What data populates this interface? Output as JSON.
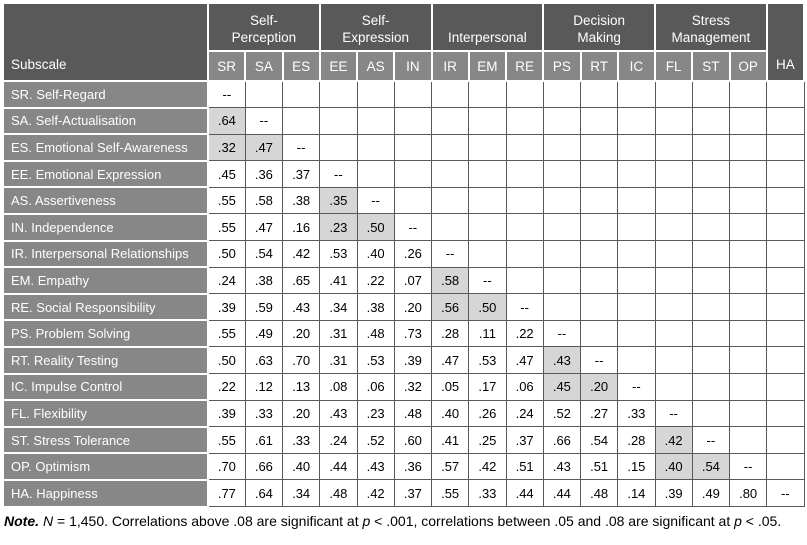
{
  "colors": {
    "header_dark": "#595959",
    "header_medium": "#878787",
    "shaded_cell": "#d6d6d6",
    "grid_line": "#595959",
    "header_text": "#ffffff",
    "cell_text": "#000000"
  },
  "table": {
    "corner_label": "Subscale",
    "groups": [
      {
        "name": "self-perception",
        "lines": [
          "Self-",
          "Perception"
        ],
        "span": 3
      },
      {
        "name": "self-expression",
        "lines": [
          "Self-",
          "Expression"
        ],
        "span": 3
      },
      {
        "name": "interpersonal",
        "lines": [
          "Interpersonal"
        ],
        "span": 3
      },
      {
        "name": "decision-making",
        "lines": [
          "Decision",
          "Making"
        ],
        "span": 3
      },
      {
        "name": "stress-management",
        "lines": [
          "Stress",
          "Management"
        ],
        "span": 3
      }
    ],
    "columns": [
      "SR",
      "SA",
      "ES",
      "EE",
      "AS",
      "IN",
      "IR",
      "EM",
      "RE",
      "PS",
      "RT",
      "IC",
      "FL",
      "ST",
      "OP",
      "HA"
    ],
    "diagonal_marker": "--",
    "rows": [
      {
        "code": "SR",
        "label": "SR. Self-Regard",
        "values": [
          "--"
        ],
        "shaded": []
      },
      {
        "code": "SA",
        "label": "SA. Self-Actualisation",
        "values": [
          ".64",
          "--"
        ],
        "shaded": [
          0
        ]
      },
      {
        "code": "ES",
        "label": "ES. Emotional Self-Awareness",
        "values": [
          ".32",
          ".47",
          "--"
        ],
        "shaded": [
          0,
          1
        ]
      },
      {
        "code": "EE",
        "label": "EE. Emotional Expression",
        "values": [
          ".45",
          ".36",
          ".37",
          "--"
        ],
        "shaded": []
      },
      {
        "code": "AS",
        "label": "AS. Assertiveness",
        "values": [
          ".55",
          ".58",
          ".38",
          ".35",
          "--"
        ],
        "shaded": [
          3
        ]
      },
      {
        "code": "IN",
        "label": "IN. Independence",
        "values": [
          ".55",
          ".47",
          ".16",
          ".23",
          ".50",
          "--"
        ],
        "shaded": [
          3,
          4
        ]
      },
      {
        "code": "IR",
        "label": "IR. Interpersonal Relationships",
        "values": [
          ".50",
          ".54",
          ".42",
          ".53",
          ".40",
          ".26",
          "--"
        ],
        "shaded": []
      },
      {
        "code": "EM",
        "label": "EM. Empathy",
        "values": [
          ".24",
          ".38",
          ".65",
          ".41",
          ".22",
          ".07",
          ".58",
          "--"
        ],
        "shaded": [
          6
        ]
      },
      {
        "code": "RE",
        "label": "RE. Social Responsibility",
        "values": [
          ".39",
          ".59",
          ".43",
          ".34",
          ".38",
          ".20",
          ".56",
          ".50",
          "--"
        ],
        "shaded": [
          6,
          7
        ]
      },
      {
        "code": "PS",
        "label": "PS. Problem Solving",
        "values": [
          ".55",
          ".49",
          ".20",
          ".31",
          ".48",
          ".73",
          ".28",
          ".11",
          ".22",
          "--"
        ],
        "shaded": []
      },
      {
        "code": "RT",
        "label": "RT. Reality Testing",
        "values": [
          ".50",
          ".63",
          ".70",
          ".31",
          ".53",
          ".39",
          ".47",
          ".53",
          ".47",
          ".43",
          "--"
        ],
        "shaded": [
          9
        ]
      },
      {
        "code": "IC",
        "label": "IC. Impulse Control",
        "values": [
          ".22",
          ".12",
          ".13",
          ".08",
          ".06",
          ".32",
          ".05",
          ".17",
          ".06",
          ".45",
          ".20",
          "--"
        ],
        "shaded": [
          9,
          10
        ]
      },
      {
        "code": "FL",
        "label": "FL. Flexibility",
        "values": [
          ".39",
          ".33",
          ".20",
          ".43",
          ".23",
          ".48",
          ".40",
          ".26",
          ".24",
          ".52",
          ".27",
          ".33",
          "--"
        ],
        "shaded": []
      },
      {
        "code": "ST",
        "label": "ST. Stress Tolerance",
        "values": [
          ".55",
          ".61",
          ".33",
          ".24",
          ".52",
          ".60",
          ".41",
          ".25",
          ".37",
          ".66",
          ".54",
          ".28",
          ".42",
          "--"
        ],
        "shaded": [
          12
        ]
      },
      {
        "code": "OP",
        "label": "OP. Optimism",
        "values": [
          ".70",
          ".66",
          ".40",
          ".44",
          ".43",
          ".36",
          ".57",
          ".42",
          ".51",
          ".43",
          ".51",
          ".15",
          ".40",
          ".54",
          "--"
        ],
        "shaded": [
          12,
          13
        ]
      },
      {
        "code": "HA",
        "label": "HA. Happiness",
        "values": [
          ".77",
          ".64",
          ".34",
          ".48",
          ".42",
          ".37",
          ".55",
          ".33",
          ".44",
          ".44",
          ".48",
          ".14",
          ".39",
          ".49",
          ".80",
          "--"
        ],
        "shaded": []
      }
    ]
  },
  "note": {
    "label": "Note.",
    "seg1": "N",
    "seg2": " = 1,450. Correlations above .08 are significant at ",
    "seg3": "p",
    "seg4": " < .001, correlations between .05 and .08 are significant at ",
    "seg5": "p",
    "seg6": " < .05."
  }
}
